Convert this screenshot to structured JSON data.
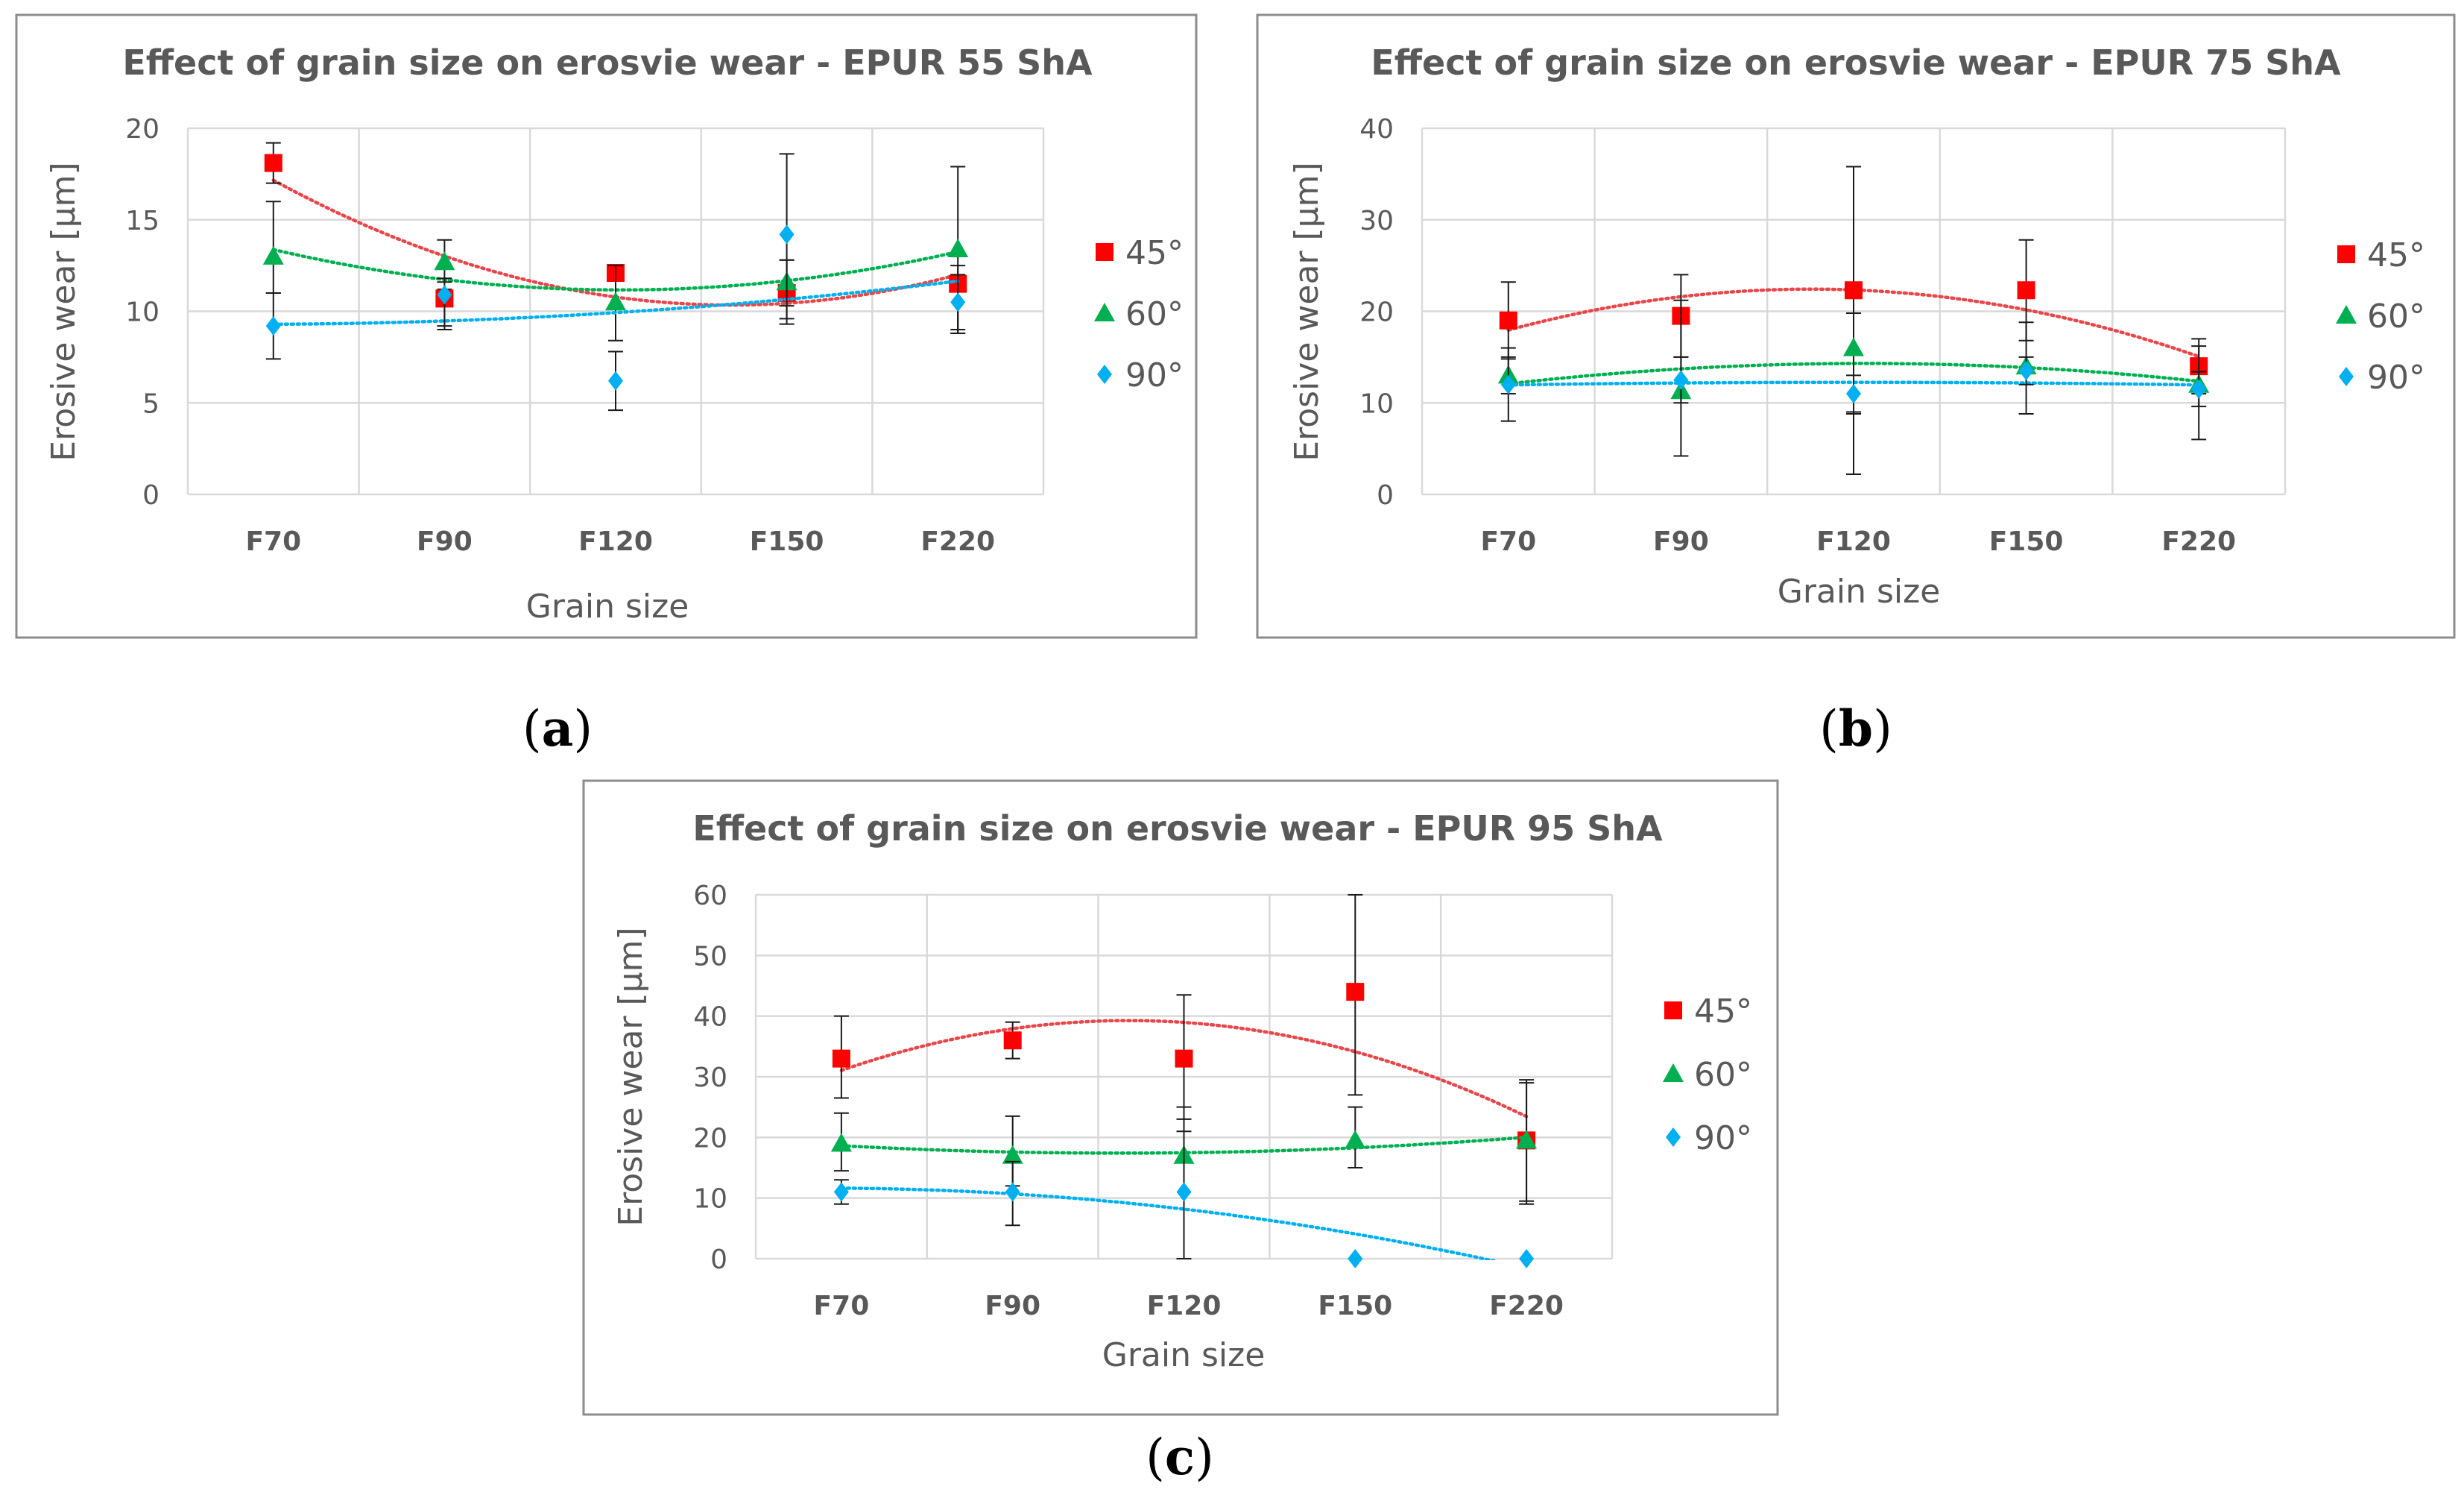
{
  "chart_data": [
    {
      "type": "scatter",
      "panel": "(a)",
      "title": "Effect of grain size on erosvie wear - EPUR 55 ShA",
      "xlabel": "Grain size",
      "ylabel": "Erosive wear [µm]",
      "categories": [
        "F70",
        "F90",
        "F120",
        "F150",
        "F220"
      ],
      "ylim": [
        0,
        20
      ],
      "yticks": [
        0,
        5,
        10,
        15,
        20
      ],
      "grid": true,
      "legend_position": "right",
      "series": [
        {
          "name": "45°",
          "marker": "square",
          "color": "#ff0000",
          "trend_color": "#e8474a",
          "values": [
            18.1,
            10.7,
            12.1,
            11.0,
            11.5
          ],
          "err_low": [
            17.0,
            9.0,
            12.0,
            9.3,
            9.0
          ],
          "err_high": [
            19.2,
            11.2,
            12.3,
            12.8,
            12.5
          ]
        },
        {
          "name": "60°",
          "marker": "triangle",
          "color": "#00b050",
          "trend_color": "#00b050",
          "values": [
            13.0,
            12.7,
            10.5,
            11.6,
            13.4
          ],
          "err_low": [
            11.0,
            11.6,
            8.4,
            10.3,
            8.8
          ],
          "err_high": [
            16.0,
            13.9,
            12.5,
            12.8,
            17.9
          ]
        },
        {
          "name": "90°",
          "marker": "diamond",
          "color": "#00b0f0",
          "trend_color": "#00b0f0",
          "values": [
            9.2,
            10.9,
            6.2,
            14.2,
            10.5
          ],
          "err_low": [
            7.4,
            9.2,
            4.6,
            9.6,
            8.8
          ],
          "err_high": [
            11.0,
            11.8,
            7.8,
            18.6,
            12.0
          ]
        }
      ]
    },
    {
      "type": "scatter",
      "panel": "(b)",
      "title": "Effect of grain size on erosvie wear - EPUR 75 ShA",
      "xlabel": "Grain size",
      "ylabel": "Erosive wear [µm]",
      "categories": [
        "F70",
        "F90",
        "F120",
        "F150",
        "F220"
      ],
      "ylim": [
        0,
        40
      ],
      "yticks": [
        0,
        10,
        20,
        30,
        40
      ],
      "grid": true,
      "legend_position": "right",
      "series": [
        {
          "name": "45°",
          "marker": "square",
          "color": "#ff0000",
          "trend_color": "#e8474a",
          "values": [
            19.0,
            19.5,
            22.3,
            22.3,
            14.0
          ],
          "err_low": [
            14.8,
            15.0,
            8.8,
            16.8,
            11.0
          ],
          "err_high": [
            23.2,
            24.0,
            35.8,
            27.8,
            17.0
          ]
        },
        {
          "name": "60°",
          "marker": "triangle",
          "color": "#00b050",
          "trend_color": "#00b050",
          "values": [
            13.0,
            11.3,
            16.0,
            14.0,
            12.0
          ],
          "err_low": [
            11.0,
            4.2,
            2.2,
            8.8,
            6.0
          ],
          "err_high": [
            15.0,
            21.2,
            19.8,
            18.8,
            16.2
          ]
        },
        {
          "name": "90°",
          "marker": "diamond",
          "color": "#00b0f0",
          "trend_color": "#00b0f0",
          "values": [
            12.0,
            12.5,
            11.0,
            13.5,
            11.5
          ],
          "err_low": [
            8.0,
            10.0,
            9.0,
            12.0,
            9.6
          ],
          "err_high": [
            16.0,
            15.0,
            13.0,
            15.0,
            13.4
          ]
        }
      ]
    },
    {
      "type": "scatter",
      "panel": "(c)",
      "title": "Effect of grain size on erosvie wear - EPUR 95 ShA",
      "xlabel": "Grain size",
      "ylabel": "Erosive wear [µm]",
      "categories": [
        "F70",
        "F90",
        "F120",
        "F150",
        "F220"
      ],
      "ylim": [
        0,
        60
      ],
      "yticks": [
        0,
        10,
        20,
        30,
        40,
        50,
        60
      ],
      "grid": true,
      "legend_position": "right",
      "series": [
        {
          "name": "45°",
          "marker": "square",
          "color": "#ff0000",
          "trend_color": "#e8474a",
          "values": [
            33.0,
            36.0,
            33.0,
            44.0,
            19.5
          ],
          "err_low": [
            26.5,
            33.0,
            23.0,
            27.0,
            9.5
          ],
          "err_high": [
            40.0,
            39.0,
            43.5,
            60.0,
            29.5
          ]
        },
        {
          "name": "60°",
          "marker": "triangle",
          "color": "#00b050",
          "trend_color": "#00b050",
          "values": [
            19.0,
            17.0,
            17.0,
            19.5,
            19.5
          ],
          "err_low": [
            14.5,
            12.0,
            0.0,
            15.0,
            9.0
          ],
          "err_high": [
            24.0,
            23.5,
            25.0,
            25.0,
            29.0
          ]
        },
        {
          "name": "90°",
          "marker": "diamond",
          "color": "#00b0f0",
          "trend_color": "#00b0f0",
          "values": [
            11.0,
            11.0,
            11.0,
            0.0,
            0.0
          ],
          "err_low": [
            9.0,
            5.5,
            0.0,
            0.0,
            0.0
          ],
          "err_high": [
            13.0,
            16.0,
            21.0,
            0.0,
            0.0
          ]
        }
      ]
    }
  ]
}
